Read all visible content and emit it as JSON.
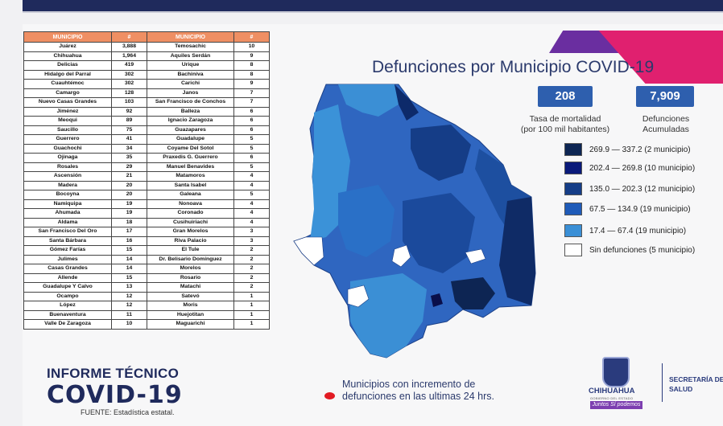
{
  "header": {
    "title": "Defunciones por Municipio COVID-19"
  },
  "table": {
    "headers": [
      "MUNICIPIO",
      "#",
      "MUNICIPIO",
      "#"
    ],
    "rows": [
      [
        "Juárez",
        "3,888",
        "Temosachic",
        "10"
      ],
      [
        "Chihuahua",
        "1,964",
        "Aquiles Serdán",
        "9"
      ],
      [
        "Delicias",
        "419",
        "Urique",
        "8"
      ],
      [
        "Hidalgo del Parral",
        "302",
        "Bachiniva",
        "8"
      ],
      [
        "Cuauhtémoc",
        "302",
        "Carichi",
        "9"
      ],
      [
        "Camargo",
        "128",
        "Janos",
        "7"
      ],
      [
        "Nuevo Casas Grandes",
        "103",
        "San Francisco de Conchos",
        "7"
      ],
      [
        "Jiménez",
        "92",
        "Balleza",
        "6"
      ],
      [
        "Meoqui",
        "89",
        "Ignacio Zaragoza",
        "6"
      ],
      [
        "Saucillo",
        "75",
        "Guazapares",
        "6"
      ],
      [
        "Guerrero",
        "41",
        "Guadalupe",
        "5"
      ],
      [
        "Guachochi",
        "34",
        "Coyame Del Sotol",
        "5"
      ],
      [
        "Ojinaga",
        "35",
        "Praxedis G. Guerrero",
        "6"
      ],
      [
        "Rosales",
        "29",
        "Manuel Benavides",
        "5"
      ],
      [
        "Ascensión",
        "21",
        "Matamoros",
        "4"
      ],
      [
        "Madera",
        "20",
        "Santa Isabel",
        "4"
      ],
      [
        "Bocoyna",
        "20",
        "Galeana",
        "5"
      ],
      [
        "Namiquipa",
        "19",
        "Nonoava",
        "4"
      ],
      [
        "Ahumada",
        "19",
        "Coronado",
        "4"
      ],
      [
        "Aldama",
        "18",
        "Cusihuiriachi",
        "4"
      ],
      [
        "San Francisco Del Oro",
        "17",
        "Gran Morelos",
        "3"
      ],
      [
        "Santa Bárbara",
        "16",
        "Riva Palacio",
        "3"
      ],
      [
        "Gómez Farías",
        "15",
        "El Tule",
        "2"
      ],
      [
        "Julimes",
        "14",
        "Dr. Belisario Domínguez",
        "2"
      ],
      [
        "Casas Grandes",
        "14",
        "Morelos",
        "2"
      ],
      [
        "Allende",
        "15",
        "Rosario",
        "2"
      ],
      [
        "Guadalupe Y Calvo",
        "13",
        "Matachi",
        "2"
      ],
      [
        "Ocampo",
        "12",
        "Satevó",
        "1"
      ],
      [
        "López",
        "12",
        "Moris",
        "1"
      ],
      [
        "Buenaventura",
        "11",
        "Huejotitan",
        "1"
      ],
      [
        "Valle De Zaragoza",
        "10",
        "Maguarichi",
        "1"
      ]
    ]
  },
  "stats": {
    "rate_value": "208",
    "rate_label_1": "Tasa de mortalidad",
    "rate_label_2": "(por 100 mil habitantes)",
    "deaths_value": "7,909",
    "deaths_label_1": "Defunciones",
    "deaths_label_2": "Acumuladas"
  },
  "legend": [
    {
      "label": "269.9 — 337.2 (2 municipio)",
      "color": "#0d2553"
    },
    {
      "label": "202.4 — 269.8 (10 municipio)",
      "color": "#0a1a7a"
    },
    {
      "label": "135.0 — 202.3 (12 municipio)",
      "color": "#153d87"
    },
    {
      "label": "67.5 — 134.9 (19 municipio)",
      "color": "#1f5bb8"
    },
    {
      "label": "17.4 — 67.4 (19 municipio)",
      "color": "#3a8fd6"
    },
    {
      "label": "Sin defunciones (5 municipio)",
      "color": "#ffffff"
    }
  ],
  "footer": {
    "report_title": "INFORME TÉCNICO",
    "report_subtitle": "COVID-19",
    "source": "FUENTE: Estadística estatal.",
    "note_line1": "Municipios con incremento de",
    "note_line2": "defunciones en las ultimas 24 hrs.",
    "logo_name": "CHIHUAHUA",
    "logo_sub": "GOBIERNO DEL ESTADO",
    "logo_tag": "Juntos Sí podemos",
    "dept_line1": "SECRETARÍA DE",
    "dept_line2": "SALUD"
  }
}
